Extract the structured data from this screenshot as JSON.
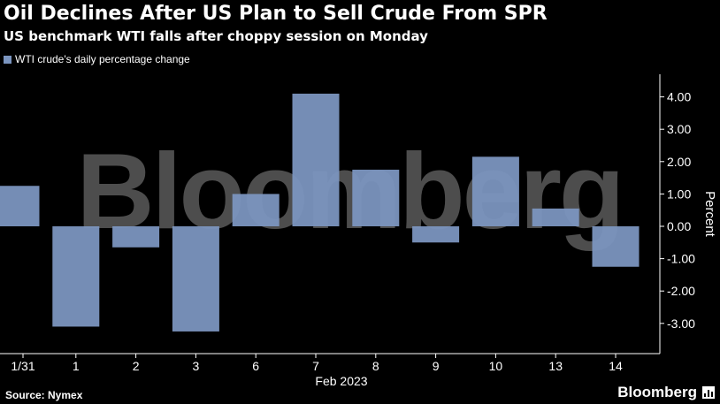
{
  "header": {
    "title": "Oil Declines After US Plan to Sell Crude From SPR",
    "subtitle": "US benchmark WTI falls after choppy session on Monday"
  },
  "watermark": "Bloomberg",
  "footer": {
    "source": "Source: Nymex",
    "brand": "Bloomberg",
    "brand_icon": "bar-chart-icon"
  },
  "colors": {
    "bar": "#7b95bf",
    "background": "#000000",
    "text": "#ffffff"
  },
  "chart_data": {
    "type": "bar",
    "categories": [
      "1/31",
      "1",
      "2",
      "3",
      "6",
      "7",
      "8",
      "9",
      "10",
      "13",
      "14"
    ],
    "series": [
      {
        "name": "WTI crude's daily percentage change",
        "values": [
          1.25,
          -3.1,
          -0.65,
          -3.25,
          1.0,
          4.1,
          1.75,
          -0.5,
          2.15,
          0.55,
          -1.25
        ]
      }
    ],
    "xlabel": "Feb 2023",
    "ylabel": "Percent",
    "ylim": [
      -3.8,
      4.7
    ],
    "yticks": [
      "-3.00",
      "-2.00",
      "-1.00",
      "0.00",
      "1.00",
      "2.00",
      "3.00",
      "4.00"
    ],
    "ytick_values": [
      -3,
      -2,
      -1,
      0,
      1,
      2,
      3,
      4
    ],
    "legend_position": "top-left",
    "y_axis_side": "right",
    "grid": false
  }
}
